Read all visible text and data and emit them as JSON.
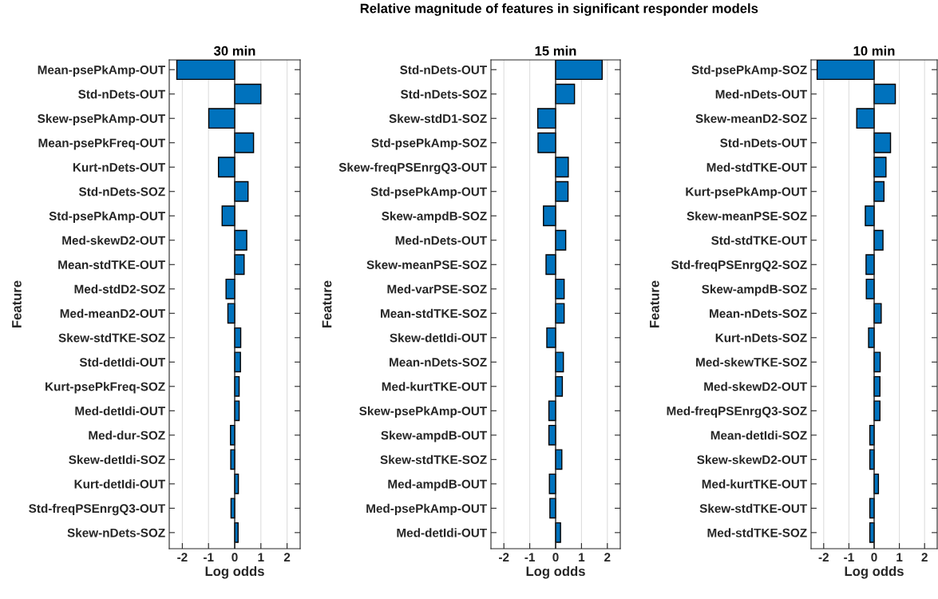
{
  "chart_data": [
    {
      "type": "bar",
      "orientation": "horizontal",
      "title": "30 min",
      "xlabel": "Log odds",
      "ylabel": "Feature",
      "annotations": [
        "Relative magnitude of features in significant responder models"
      ],
      "color": "#0072bd",
      "grid": "x",
      "xlim": [
        -2.5,
        2.5
      ],
      "xticks": [
        -2,
        -1,
        0,
        1,
        2
      ],
      "ref_lines": [
        {
          "axis": "x",
          "value": 0,
          "color": "#262626"
        }
      ],
      "categories": [
        "Mean-psePkAmp-OUT",
        "Std-nDets-OUT",
        "Skew-psePkAmp-OUT",
        "Mean-psePkFreq-OUT",
        "Kurt-nDets-OUT",
        "Std-nDets-SOZ",
        "Std-psePkAmp-OUT",
        "Med-skewD2-OUT",
        "Mean-stdTKE-OUT",
        "Med-stdD2-SOZ",
        "Med-meanD2-OUT",
        "Skew-stdTKE-SOZ",
        "Std-detIdi-OUT",
        "Kurt-psePkFreq-SOZ",
        "Med-detIdi-OUT",
        "Med-dur-SOZ",
        "Skew-detIdi-SOZ",
        "Kurt-detIdi-OUT",
        "Std-freqPSEnrgQ3-OUT",
        "Skew-nDets-SOZ"
      ],
      "values": [
        -2.21,
        1.0,
        -0.99,
        0.72,
        -0.62,
        0.51,
        -0.48,
        0.46,
        0.36,
        -0.33,
        -0.26,
        0.23,
        0.22,
        0.17,
        0.17,
        -0.16,
        -0.15,
        0.14,
        -0.14,
        0.13
      ]
    },
    {
      "type": "bar",
      "orientation": "horizontal",
      "title": "15 min",
      "xlabel": "Log odds",
      "ylabel": "Feature",
      "color": "#0072bd",
      "grid": "x",
      "xlim": [
        -2.5,
        2.5
      ],
      "xticks": [
        -2,
        -1,
        0,
        1,
        2
      ],
      "ref_lines": [
        {
          "axis": "x",
          "value": 0,
          "color": "#262626"
        }
      ],
      "categories": [
        "Std-nDets-OUT",
        "Std-nDets-SOZ",
        "Skew-stdD1-SOZ",
        "Std-psePkAmp-SOZ",
        "Skew-freqPSEnrgQ3-OUT",
        "Std-psePkAmp-OUT",
        "Skew-ampdB-SOZ",
        "Med-nDets-OUT",
        "Skew-meanPSE-SOZ",
        "Med-varPSE-SOZ",
        "Mean-stdTKE-SOZ",
        "Skew-detIdi-OUT",
        "Mean-nDets-SOZ",
        "Med-kurtTKE-OUT",
        "Skew-psePkAmp-OUT",
        "Skew-ampdB-OUT",
        "Skew-stdTKE-SOZ",
        "Med-ampdB-OUT",
        "Med-psePkAmp-OUT",
        "Med-detIdi-OUT"
      ],
      "values": [
        1.8,
        0.73,
        -0.69,
        -0.68,
        0.49,
        0.48,
        -0.47,
        0.39,
        -0.37,
        0.33,
        0.33,
        -0.34,
        0.3,
        0.26,
        -0.26,
        -0.26,
        0.24,
        -0.24,
        -0.22,
        0.19
      ]
    },
    {
      "type": "bar",
      "orientation": "horizontal",
      "title": "10 min",
      "xlabel": "Log odds",
      "ylabel": "Feature",
      "color": "#0072bd",
      "grid": "x",
      "xlim": [
        -2.5,
        2.5
      ],
      "xticks": [
        -2,
        -1,
        0,
        1,
        2
      ],
      "ref_lines": [
        {
          "axis": "x",
          "value": 0,
          "color": "#262626"
        }
      ],
      "categories": [
        "Std-psePkAmp-SOZ",
        "Med-nDets-OUT",
        "Skew-meanD2-SOZ",
        "Std-nDets-OUT",
        "Med-stdTKE-OUT",
        "Kurt-psePkAmp-OUT",
        "Skew-meanPSE-SOZ",
        "Std-stdTKE-OUT",
        "Std-freqPSEnrgQ2-SOZ",
        "Skew-ampdB-SOZ",
        "Mean-nDets-SOZ",
        "Kurt-nDets-SOZ",
        "Med-skewTKE-SOZ",
        "Med-skewD2-OUT",
        "Med-freqPSEnrgQ3-SOZ",
        "Mean-detIdi-SOZ",
        "Skew-skewD2-OUT",
        "Med-kurtTKE-OUT",
        "Skew-stdTKE-OUT",
        "Med-stdTKE-SOZ"
      ],
      "values": [
        -2.26,
        0.84,
        -0.69,
        0.65,
        0.47,
        0.39,
        -0.35,
        0.35,
        -0.32,
        -0.31,
        0.28,
        -0.22,
        0.24,
        0.23,
        0.23,
        -0.17,
        -0.17,
        0.17,
        -0.17,
        -0.17
      ]
    }
  ]
}
